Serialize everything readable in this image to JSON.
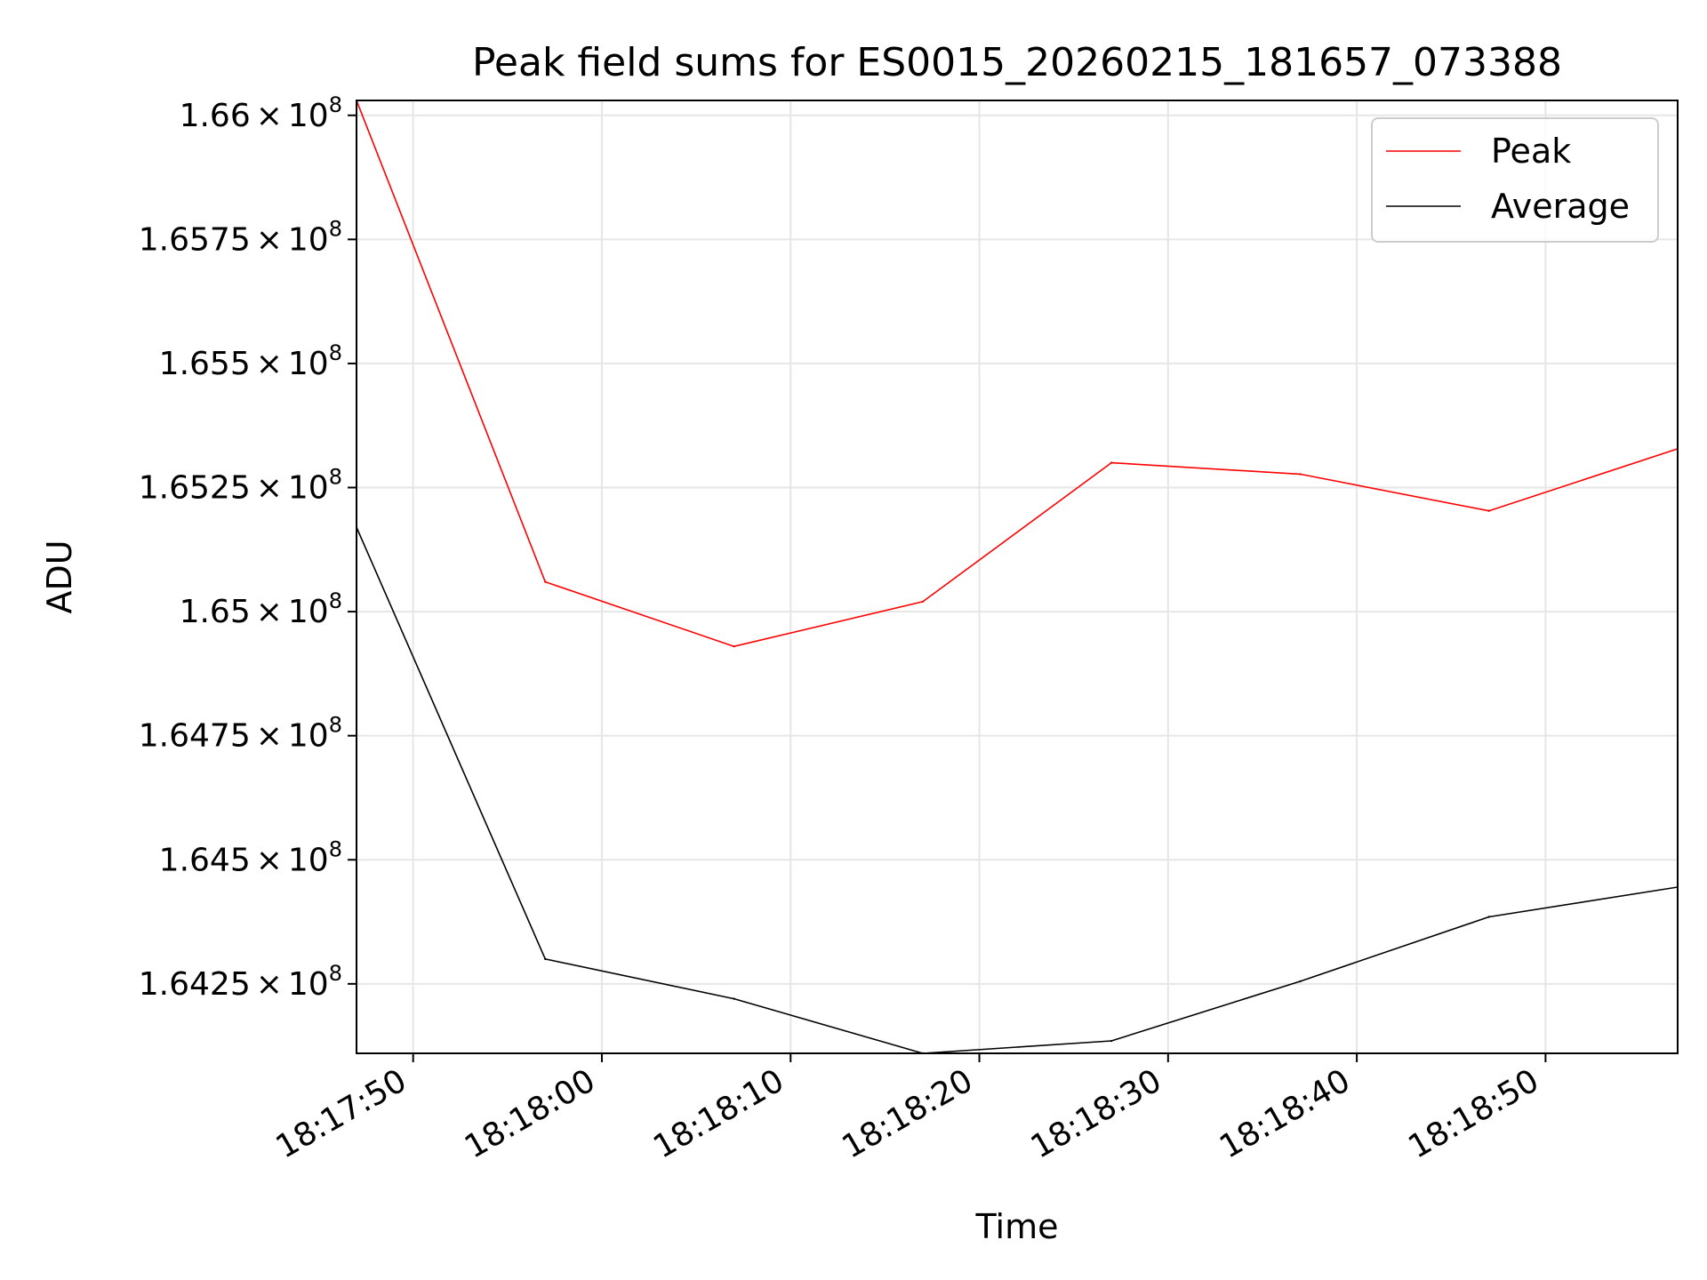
{
  "chart_data": {
    "type": "line",
    "title": "Peak field sums for ES0015_20260215_181657_073388",
    "xlabel": "Time",
    "ylabel": "ADU",
    "x": [
      "18:17:47",
      "18:17:57",
      "18:18:07",
      "18:18:17",
      "18:18:27",
      "18:18:37",
      "18:18:47",
      "18:18:57"
    ],
    "xlim": [
      "18:17:47",
      "18:18:57"
    ],
    "ylim": [
      164110000,
      166030000
    ],
    "xticks": [
      {
        "time": "18:17:50",
        "label": "18:17:50"
      },
      {
        "time": "18:18:00",
        "label": "18:18:00"
      },
      {
        "time": "18:18:10",
        "label": "18:18:10"
      },
      {
        "time": "18:18:20",
        "label": "18:18:20"
      },
      {
        "time": "18:18:30",
        "label": "18:18:30"
      },
      {
        "time": "18:18:40",
        "label": "18:18:40"
      },
      {
        "time": "18:18:50",
        "label": "18:18:50"
      }
    ],
    "yticks": [
      {
        "value": 164250000,
        "mantissa": "1.6425",
        "times": "×",
        "base": "10",
        "exponent": "8"
      },
      {
        "value": 164500000,
        "mantissa": "1.645",
        "times": "×",
        "base": "10",
        "exponent": "8"
      },
      {
        "value": 164750000,
        "mantissa": "1.6475",
        "times": "×",
        "base": "10",
        "exponent": "8"
      },
      {
        "value": 165000000,
        "mantissa": "1.65",
        "times": "×",
        "base": "10",
        "exponent": "8"
      },
      {
        "value": 165250000,
        "mantissa": "1.6525",
        "times": "×",
        "base": "10",
        "exponent": "8"
      },
      {
        "value": 165500000,
        "mantissa": "1.655",
        "times": "×",
        "base": "10",
        "exponent": "8"
      },
      {
        "value": 165750000,
        "mantissa": "1.6575",
        "times": "×",
        "base": "10",
        "exponent": "8"
      },
      {
        "value": 166000000,
        "mantissa": "1.66",
        "times": "×",
        "base": "10",
        "exponent": "8"
      }
    ],
    "grid": true,
    "legend_position": "top-right",
    "series": [
      {
        "name": "Peak",
        "color": "#ff0000",
        "values": [
          166030000,
          165060000,
          164930000,
          165020000,
          165300000,
          165277000,
          165203000,
          165328000
        ]
      },
      {
        "name": "Average",
        "color": "#000000",
        "values": [
          165170000,
          164300000,
          164220000,
          164110000,
          164135000,
          164255000,
          164385000,
          164445000
        ]
      }
    ]
  }
}
